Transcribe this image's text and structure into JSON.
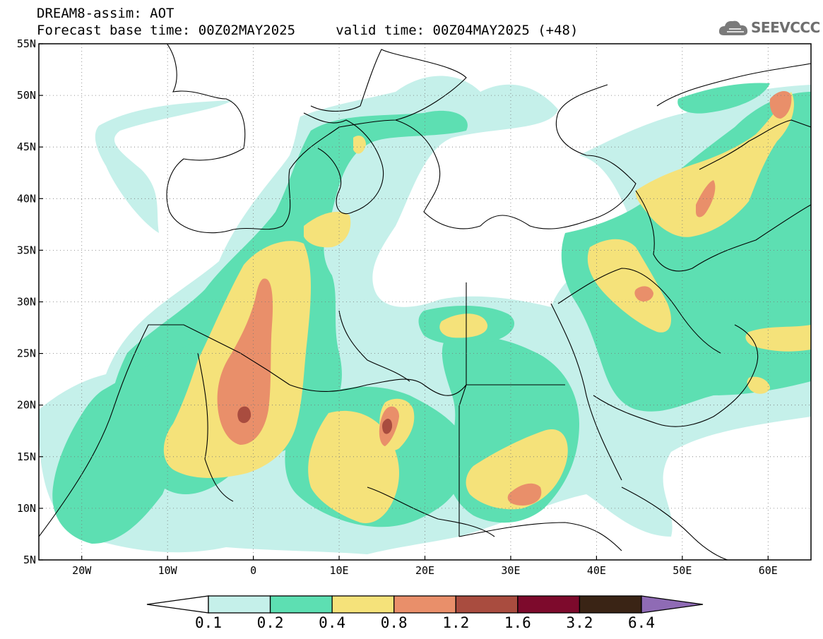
{
  "header": {
    "title_line1": "DREAM8-assim: AOT",
    "title_line2": "Forecast base time: 00Z02MAY2025     valid time: 00Z04MAY2025 (+48)"
  },
  "logo": {
    "text": "SEEVCCC",
    "icon": "cloud-logo-icon"
  },
  "map": {
    "lon_range": [
      -25,
      65
    ],
    "lat_range": [
      5,
      55
    ],
    "lat_ticks": [
      {
        "value": 55,
        "label": "55N"
      },
      {
        "value": 50,
        "label": "50N"
      },
      {
        "value": 45,
        "label": "45N"
      },
      {
        "value": 40,
        "label": "40N"
      },
      {
        "value": 35,
        "label": "35N"
      },
      {
        "value": 30,
        "label": "30N"
      },
      {
        "value": 25,
        "label": "25N"
      },
      {
        "value": 20,
        "label": "20N"
      },
      {
        "value": 15,
        "label": "15N"
      },
      {
        "value": 10,
        "label": "10N"
      },
      {
        "value": 5,
        "label": "5N"
      }
    ],
    "lon_ticks": [
      {
        "value": -20,
        "label": "20W"
      },
      {
        "value": -10,
        "label": "10W"
      },
      {
        "value": 0,
        "label": "0"
      },
      {
        "value": 10,
        "label": "10E"
      },
      {
        "value": 20,
        "label": "20E"
      },
      {
        "value": 30,
        "label": "30E"
      },
      {
        "value": 40,
        "label": "40E"
      },
      {
        "value": 50,
        "label": "50E"
      },
      {
        "value": 60,
        "label": "60E"
      }
    ],
    "gridlines": "dotted"
  },
  "colorbar": {
    "levels": [
      "0.1",
      "0.2",
      "0.4",
      "0.8",
      "1.2",
      "1.6",
      "3.2",
      "6.4"
    ],
    "colors": [
      "#ffffff",
      "#c5f0ea",
      "#5ddfb2",
      "#f5e27a",
      "#e98f6a",
      "#a94c3f",
      "#7d0a2c",
      "#3a2415",
      "#8f6bb5"
    ]
  }
}
